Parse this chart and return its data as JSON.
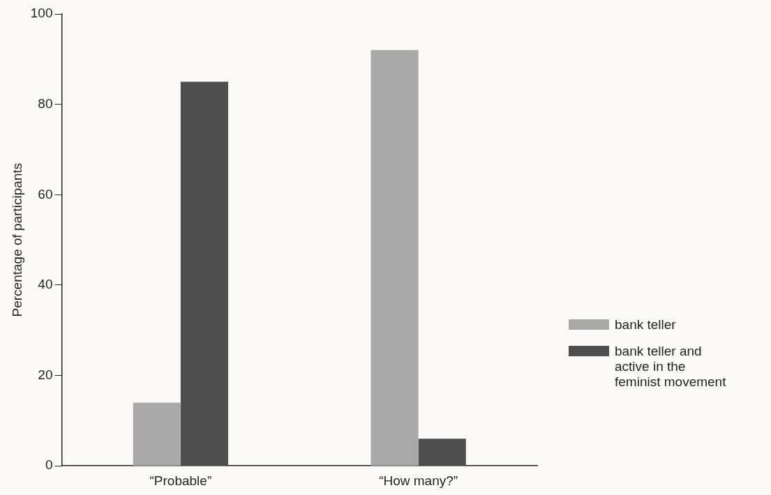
{
  "chart_data": {
    "type": "bar",
    "ylabel": "Percentage of participants",
    "categories": [
      "“Probable”",
      "“How many?”"
    ],
    "series": [
      {
        "name": "bank teller",
        "color": "#a9a9a9",
        "values": [
          14,
          92
        ]
      },
      {
        "name": "bank teller and active in the feminist movement",
        "color": "#4e4e4e",
        "values": [
          85,
          6
        ]
      }
    ],
    "ylim": [
      0,
      100
    ],
    "yticks": [
      0,
      20,
      40,
      60,
      80,
      100
    ],
    "grid": false,
    "legend": "bottom right"
  }
}
